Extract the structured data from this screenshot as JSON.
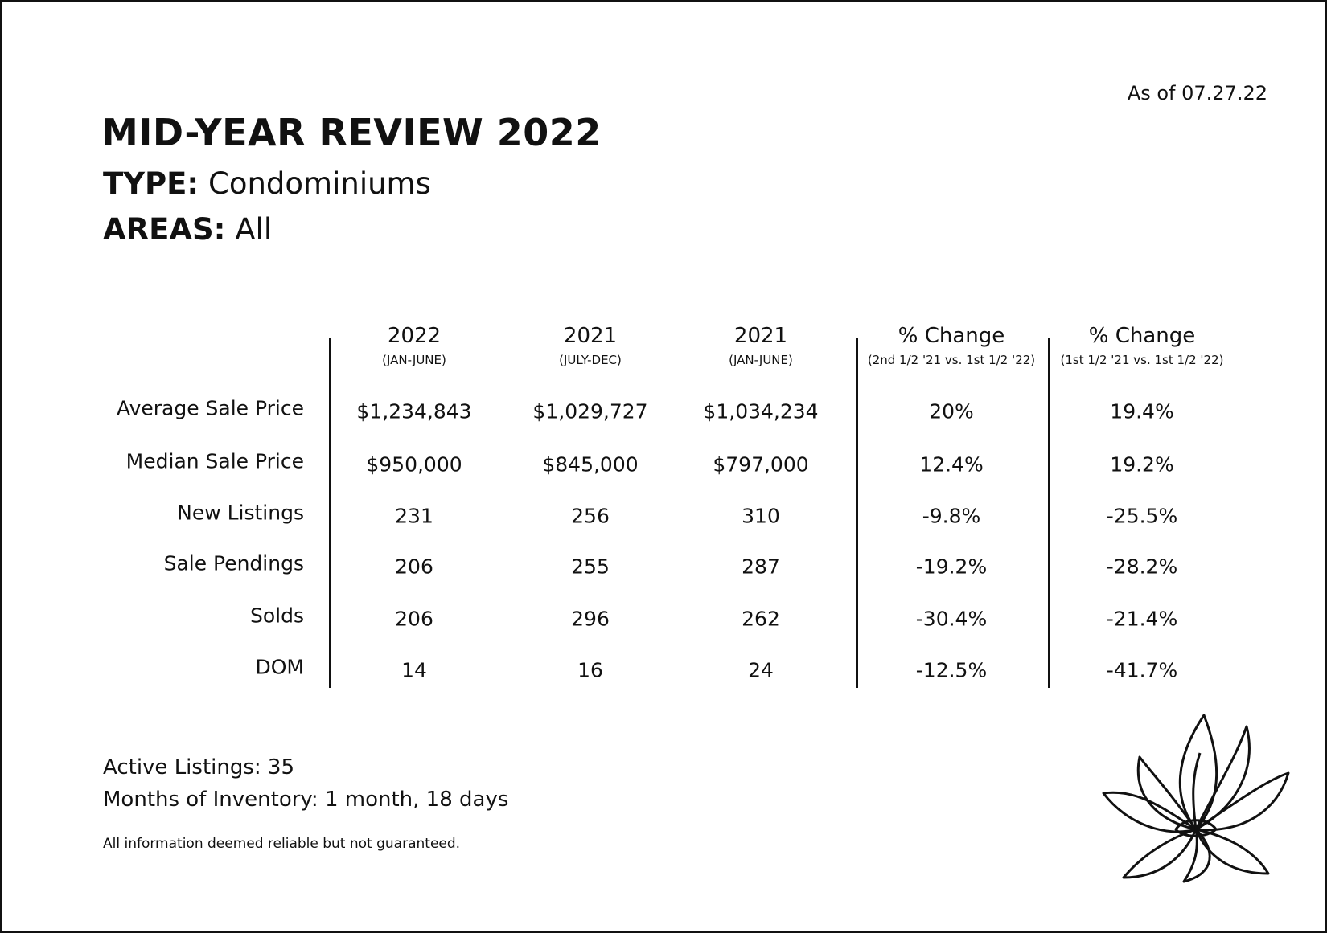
{
  "header": {
    "date": "As of 07.27.22",
    "title": "MID-YEAR REVIEW 2022",
    "type_label": "TYPE:",
    "type_value": "Condominiums",
    "areas_label": "AREAS:",
    "areas_value": "All"
  },
  "table": {
    "columns": [
      {
        "title": "2022",
        "subtitle": "(JAN-JUNE)"
      },
      {
        "title": "2021",
        "subtitle": "(JULY-DEC)"
      },
      {
        "title": "2021",
        "subtitle": "(JAN-JUNE)"
      },
      {
        "title": "% Change",
        "subtitle": "(2nd 1/2 '21 vs. 1st 1/2 '22)"
      },
      {
        "title": "% Change",
        "subtitle": "(1st 1/2 '21 vs. 1st 1/2 '22)"
      }
    ],
    "rows": [
      {
        "label": "Average Sale Price",
        "cells": [
          "$1,234,843",
          "$1,029,727",
          "$1,034,234",
          "20%",
          "19.4%"
        ]
      },
      {
        "label": "Median Sale Price",
        "cells": [
          "$950,000",
          "$845,000",
          "$797,000",
          "12.4%",
          "19.2%"
        ]
      },
      {
        "label": "New Listings",
        "cells": [
          "231",
          "256",
          "310",
          "-9.8%",
          "-25.5%"
        ]
      },
      {
        "label": "Sale Pendings",
        "cells": [
          "206",
          "255",
          "287",
          "-19.2%",
          "-28.2%"
        ]
      },
      {
        "label": "Solds",
        "cells": [
          "206",
          "296",
          "262",
          "-30.4%",
          "-21.4%"
        ]
      },
      {
        "label": "DOM",
        "cells": [
          "14",
          "16",
          "24",
          "-12.5%",
          "-41.7%"
        ]
      }
    ]
  },
  "footer": {
    "active_listings": "Active Listings: 35",
    "inventory": "Months of Inventory: 1 month, 18 days",
    "disclaimer": "All information deemed reliable but not guaranteed."
  }
}
